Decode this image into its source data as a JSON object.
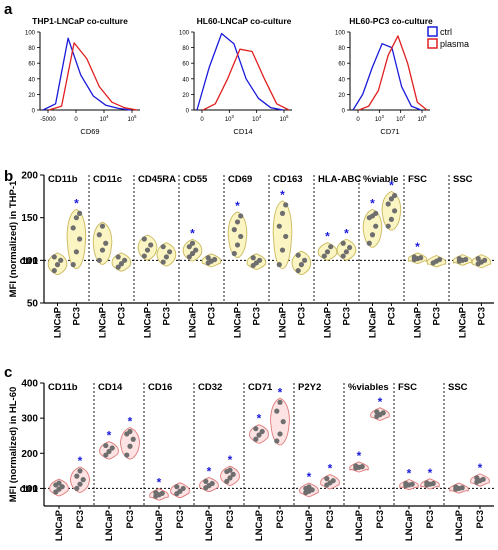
{
  "panel_a": {
    "label": "a",
    "legend": [
      {
        "name": "ctrl",
        "color": "#1a1adb"
      },
      {
        "name": "plasma",
        "color": "#e02020"
      }
    ]
  },
  "panel_b": {
    "label": "b"
  },
  "panel_c": {
    "label": "c"
  },
  "chart_data": [
    {
      "type": "line",
      "title": "THP1-LNCaP co-culture",
      "xlabel": "CD69",
      "yticks": [
        "0",
        "20",
        "40",
        "60",
        "80",
        "100"
      ],
      "xticks": [
        "-5000",
        "0",
        "10^4",
        "10^5"
      ],
      "x": [
        -5000,
        0,
        1000,
        3000,
        10000,
        30000,
        100000,
        200000
      ],
      "series": [
        {
          "name": "ctrl",
          "values": [
            0,
            8,
            92,
            45,
            18,
            6,
            2,
            0
          ]
        },
        {
          "name": "plasma",
          "values": [
            0,
            5,
            86,
            66,
            30,
            10,
            3,
            0
          ]
        }
      ]
    },
    {
      "type": "line",
      "title": "HL60-LNCaP co-culture",
      "xlabel": "CD14",
      "yticks": [
        "0",
        "20",
        "40",
        "60",
        "80",
        "100"
      ],
      "xticks": [
        "0",
        "10^3",
        "10^4",
        "10^5"
      ],
      "x": [
        0,
        300,
        1000,
        3000,
        10000,
        20000,
        50000,
        100000
      ],
      "series": [
        {
          "name": "ctrl",
          "values": [
            0,
            55,
            98,
            85,
            40,
            15,
            3,
            0
          ]
        },
        {
          "name": "plasma",
          "values": [
            0,
            8,
            40,
            78,
            75,
            40,
            8,
            0
          ]
        }
      ]
    },
    {
      "type": "line",
      "title": "HL60-PC3 co-culture",
      "xlabel": "CD71",
      "yticks": [
        "0",
        "20",
        "40",
        "60",
        "80",
        "100"
      ],
      "xticks": [
        "0",
        "10^3",
        "10^4",
        "10^5"
      ],
      "x": [
        0,
        1000,
        3000,
        10000,
        20000,
        50000,
        100000,
        200000
      ],
      "series": [
        {
          "name": "ctrl",
          "values": [
            0,
            20,
            55,
            85,
            80,
            30,
            5,
            0
          ]
        },
        {
          "name": "plasma",
          "values": [
            0,
            5,
            25,
            70,
            95,
            60,
            10,
            0
          ]
        }
      ]
    },
    {
      "type": "scatter",
      "ylabel": "MFI (normalized) in THP-1",
      "ylim": [
        50,
        200
      ],
      "yticks": [
        "50",
        "100",
        "150",
        "200"
      ],
      "baseline_label": "ctr1",
      "baseline": 100,
      "markers": [
        "LNCaP",
        "PC3"
      ],
      "star": "*",
      "groups": [
        {
          "name": "CD11b",
          "LNCaP": [
            88,
            95,
            100,
            104
          ],
          "PC3": [
            95,
            110,
            125,
            138,
            150,
            155
          ],
          "star": [
            "PC3"
          ]
        },
        {
          "name": "CD11c",
          "LNCaP": [
            100,
            112,
            120,
            130,
            140
          ],
          "PC3": [
            92,
            96,
            100,
            104
          ],
          "star": []
        },
        {
          "name": "CD45RA",
          "LNCaP": [
            105,
            112,
            118,
            125
          ],
          "PC3": [
            98,
            104,
            110,
            116
          ],
          "star": []
        },
        {
          "name": "CD55",
          "LNCaP": [
            104,
            108,
            112,
            116,
            120
          ],
          "PC3": [
            97,
            99,
            101,
            103
          ],
          "star": [
            "LNCaP"
          ]
        },
        {
          "name": "CD69",
          "LNCaP": [
            108,
            118,
            128,
            136,
            145,
            152
          ],
          "PC3": [
            94,
            97,
            100,
            103
          ],
          "star": [
            "LNCaP"
          ]
        },
        {
          "name": "CD163",
          "LNCaP": [
            95,
            112,
            128,
            140,
            155,
            165
          ],
          "PC3": [
            88,
            95,
            100,
            106
          ],
          "star": [
            "LNCaP"
          ]
        },
        {
          "name": "HLA-ABC",
          "LNCaP": [
            105,
            110,
            116
          ],
          "PC3": [
            105,
            110,
            115,
            120
          ],
          "star": [
            "LNCaP",
            "PC3"
          ]
        },
        {
          "name": "%viable",
          "LNCaP": [
            120,
            130,
            140,
            150,
            152,
            155
          ],
          "PC3": [
            140,
            148,
            158,
            166,
            172,
            176
          ],
          "star": [
            "LNCaP",
            "PC3"
          ]
        },
        {
          "name": "FSC",
          "LNCaP": [
            101,
            102,
            103,
            104
          ],
          "PC3": [
            97,
            99,
            101
          ],
          "star": [
            "LNCaP"
          ]
        },
        {
          "name": "SSC",
          "LNCaP": [
            99,
            100,
            101,
            102
          ],
          "PC3": [
            96,
            98,
            100,
            102
          ],
          "star": []
        }
      ]
    },
    {
      "type": "scatter",
      "ylabel": "MFI (normalized) in HL-60",
      "ylim": [
        50,
        400
      ],
      "yticks": [
        "100",
        "200",
        "300",
        "400"
      ],
      "baseline_label": "ctr1",
      "baseline": 100,
      "markers": [
        "LNCaP",
        "PC3"
      ],
      "star": "*",
      "groups": [
        {
          "name": "CD11b",
          "LNCaP": [
            90,
            98,
            105,
            110,
            115
          ],
          "PC3": [
            100,
            112,
            125,
            135,
            150
          ],
          "star": [
            "PC3"
          ]
        },
        {
          "name": "CD14",
          "LNCaP": [
            195,
            205,
            215,
            222
          ],
          "PC3": [
            195,
            220,
            240,
            255,
            262
          ],
          "star": [
            "LNCaP",
            "PC3"
          ]
        },
        {
          "name": "CD16",
          "LNCaP": [
            78,
            82,
            86,
            88
          ],
          "PC3": [
            85,
            92,
            100,
            105
          ],
          "star": [
            "LNCaP"
          ]
        },
        {
          "name": "CD32",
          "LNCaP": [
            102,
            108,
            114,
            120
          ],
          "PC3": [
            120,
            130,
            140,
            148,
            152
          ],
          "star": [
            "LNCaP",
            "PC3"
          ]
        },
        {
          "name": "CD71",
          "LNCaP": [
            240,
            252,
            262,
            270
          ],
          "PC3": [
            235,
            255,
            290,
            320,
            345
          ],
          "star": [
            "LNCaP",
            "PC3"
          ]
        },
        {
          "name": "P2Y2",
          "LNCaP": [
            88,
            92,
            96,
            100,
            104
          ],
          "PC3": [
            110,
            116,
            122,
            128
          ],
          "star": [
            "LNCaP",
            "PC3"
          ]
        },
        {
          "name": "%viables",
          "LNCaP": [
            158,
            160,
            162,
            164
          ],
          "PC3": [
            305,
            310,
            315,
            318
          ],
          "star": [
            "LNCaP",
            "PC3"
          ]
        },
        {
          "name": "FSC",
          "LNCaP": [
            108,
            110,
            112,
            114
          ],
          "PC3": [
            110,
            112,
            114,
            116
          ],
          "star": [
            "LNCaP",
            "PC3"
          ]
        },
        {
          "name": "SSC",
          "LNCaP": [
            98,
            100,
            102,
            104
          ],
          "PC3": [
            118,
            122,
            126,
            130
          ],
          "star": [
            "PC3"
          ]
        }
      ]
    }
  ]
}
